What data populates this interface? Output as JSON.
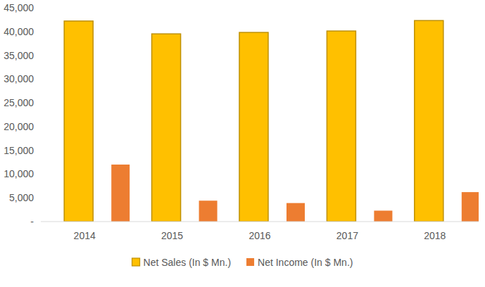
{
  "chart_data": {
    "type": "bar",
    "categories": [
      "2014",
      "2015",
      "2016",
      "2017",
      "2018"
    ],
    "series": [
      {
        "name": "Net Sales (In $ Mn.)",
        "color": "#ffc000",
        "values": [
          42200,
          39500,
          39800,
          40100,
          42300
        ]
      },
      {
        "name": "Net Income (In $ Mn.)",
        "color": "#ed7d31",
        "values": [
          12000,
          4400,
          3900,
          2300,
          6200
        ]
      }
    ],
    "ylim": [
      0,
      45000
    ],
    "yticks": [
      {
        "value": 0,
        "label": "-"
      },
      {
        "value": 5000,
        "label": "5,000"
      },
      {
        "value": 10000,
        "label": "10,000"
      },
      {
        "value": 15000,
        "label": "15,000"
      },
      {
        "value": 20000,
        "label": "20,000"
      },
      {
        "value": 25000,
        "label": "25,000"
      },
      {
        "value": 30000,
        "label": "30,000"
      },
      {
        "value": 35000,
        "label": "35,000"
      },
      {
        "value": 40000,
        "label": "40,000"
      },
      {
        "value": 45000,
        "label": "45,000"
      }
    ],
    "grid": false,
    "legend": "bottom"
  }
}
